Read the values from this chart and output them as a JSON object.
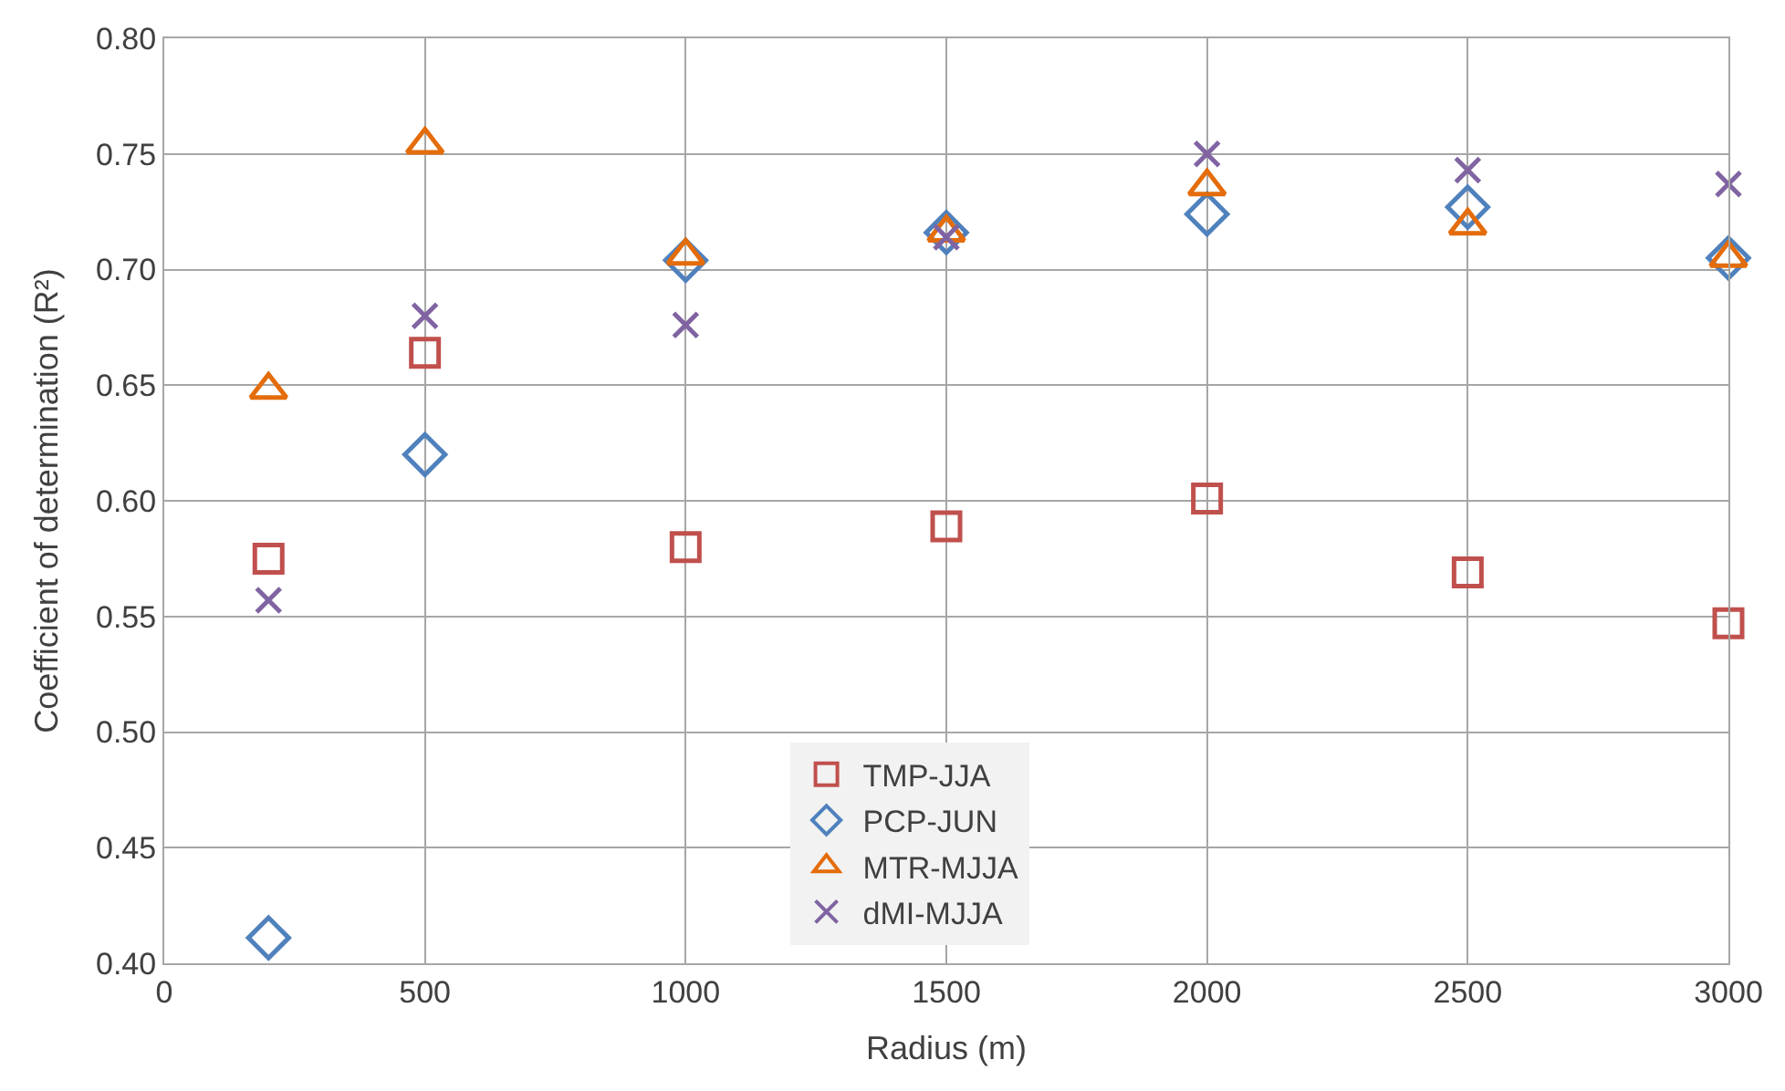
{
  "chart_data": {
    "type": "scatter",
    "xlabel": "Radius (m)",
    "ylabel": "Coefficient of determination (R²)",
    "x": [
      200,
      500,
      1000,
      1500,
      2000,
      2500,
      3000
    ],
    "xlim": [
      0,
      3000
    ],
    "xticks": [
      0,
      500,
      1000,
      1500,
      2000,
      2500,
      3000
    ],
    "ylim": [
      0.4,
      0.8
    ],
    "yticks": [
      {
        "value": 0.4,
        "label": "0.40"
      },
      {
        "value": 0.45,
        "label": "0.45"
      },
      {
        "value": 0.5,
        "label": "0.50"
      },
      {
        "value": 0.55,
        "label": "0.55"
      },
      {
        "value": 0.6,
        "label": "0.60"
      },
      {
        "value": 0.65,
        "label": "0.65"
      },
      {
        "value": 0.7,
        "label": "0.70"
      },
      {
        "value": 0.75,
        "label": "0.75"
      },
      {
        "value": 0.8,
        "label": "0.80"
      }
    ],
    "grid": true,
    "legend": "bottom",
    "series": [
      {
        "name": "TMP-JJA",
        "color": "#c0504d",
        "marker": "square",
        "values": [
          0.575,
          0.664,
          0.58,
          0.589,
          0.601,
          0.569,
          0.547
        ]
      },
      {
        "name": "PCP-JUN",
        "color": "#4f81bd",
        "marker": "diamond",
        "values": [
          0.411,
          0.62,
          0.704,
          0.716,
          0.724,
          0.727,
          0.705
        ]
      },
      {
        "name": "MTR-MJJA",
        "color": "#e46c0a",
        "marker": "triangle",
        "values": [
          0.648,
          0.754,
          0.706,
          0.716,
          0.736,
          0.719,
          0.705
        ]
      },
      {
        "name": "dMI-MJJA",
        "color": "#8064a2",
        "marker": "cross",
        "values": [
          0.557,
          0.68,
          0.676,
          0.714,
          0.75,
          0.743,
          0.737
        ]
      }
    ]
  }
}
